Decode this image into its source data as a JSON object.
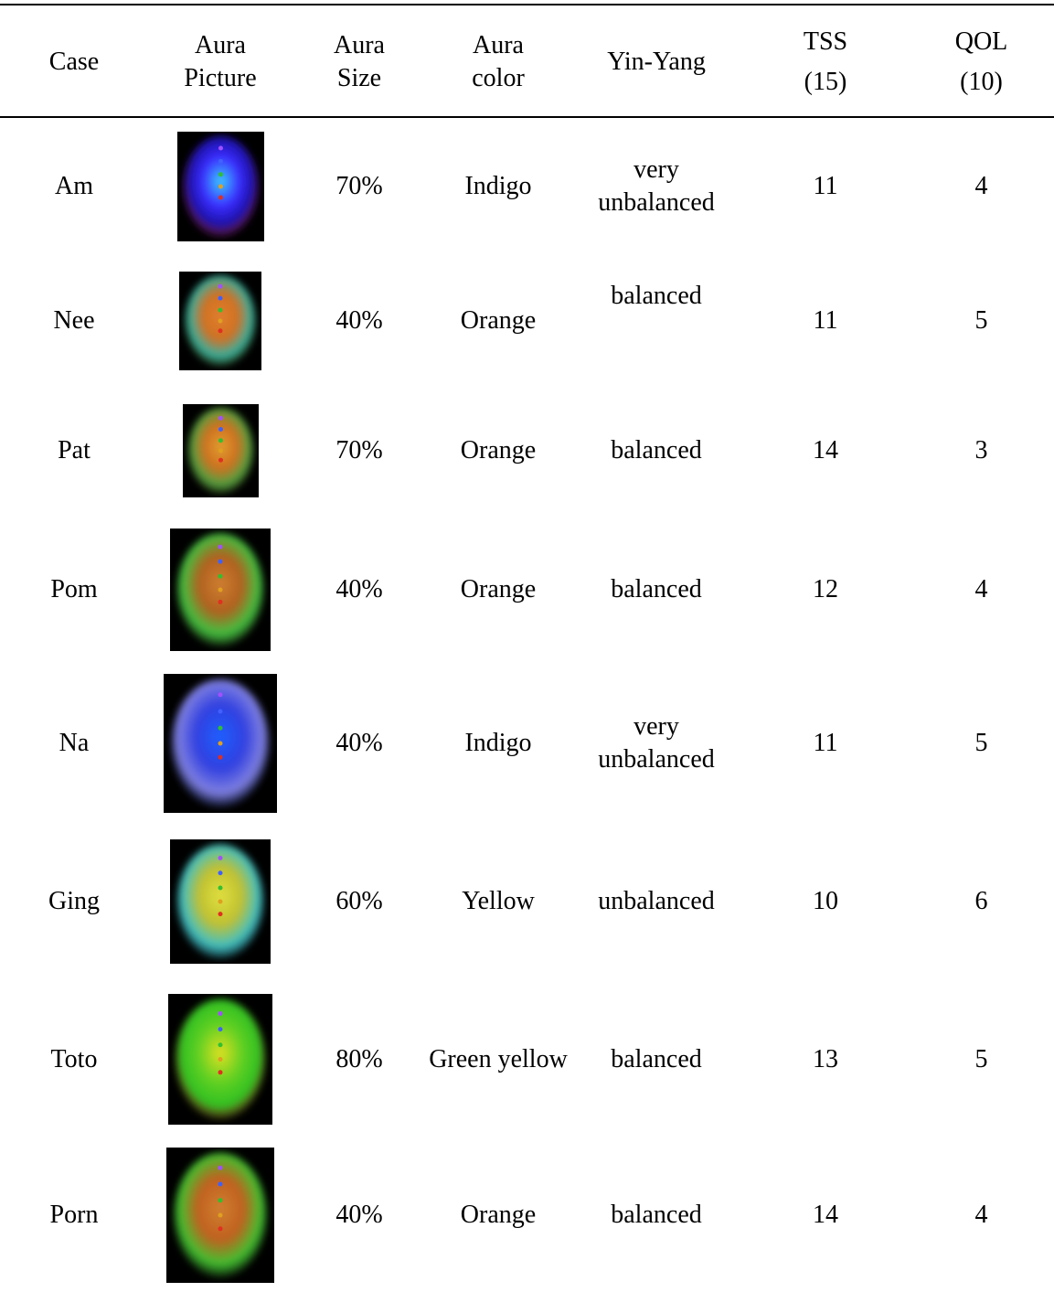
{
  "table": {
    "header": [
      [
        "Case"
      ],
      [
        "Aura",
        "Picture"
      ],
      [
        "Aura",
        "Size"
      ],
      [
        "Aura",
        "color"
      ],
      [
        "Yin-Yang"
      ],
      [
        "TSS",
        "(15)"
      ],
      [
        "QOL",
        "(10)"
      ]
    ],
    "rows": [
      [
        "Am",
        "70%",
        "Indigo",
        "very unbalanced",
        11,
        4
      ],
      [
        "Nee",
        "40%",
        "Orange",
        "balanced",
        11,
        5
      ],
      [
        "Pat",
        "70%",
        "Orange",
        "balanced",
        14,
        3
      ],
      [
        "Pom",
        "40%",
        "Orange",
        "balanced",
        12,
        4
      ],
      [
        "Na",
        "40%",
        "Indigo",
        "very unbalanced",
        11,
        5
      ],
      [
        "Ging",
        "60%",
        "Yellow",
        "unbalanced",
        10,
        6
      ],
      [
        "Toto",
        "80%",
        "Green yellow",
        "balanced",
        13,
        5
      ],
      [
        "Porn",
        "40%",
        "Orange",
        "balanced",
        14,
        4
      ]
    ]
  }
}
